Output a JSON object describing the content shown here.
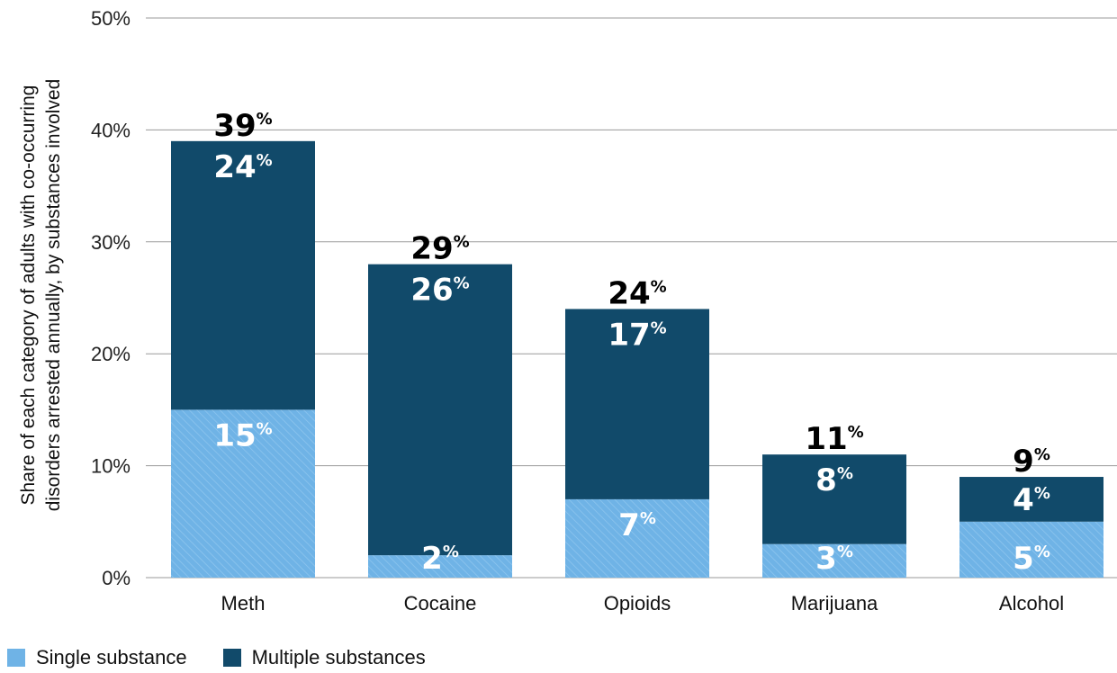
{
  "chart_data": {
    "type": "bar",
    "stacked": true,
    "categories": [
      "Meth",
      "Cocaine",
      "Opioids",
      "Marijuana",
      "Alcohol"
    ],
    "series": [
      {
        "name": "Single substance",
        "values": [
          15,
          2,
          7,
          3,
          5
        ],
        "labels": [
          "15",
          "2",
          "7",
          "3",
          "5"
        ],
        "color": "#6fb3e6"
      },
      {
        "name": "Multiple substances",
        "values": [
          24,
          26,
          17,
          8,
          4
        ],
        "labels": [
          "24",
          "26",
          "17",
          "8",
          "4"
        ],
        "color": "#114a6a"
      }
    ],
    "totals": [
      "39",
      "29",
      "24",
      "11",
      "9"
    ],
    "percent_sign": "%",
    "ylabel_line1": "Share of each category of  adults with co-occurring",
    "ylabel_line2": "disorders arrested annually, by substances involved",
    "ylim": [
      0,
      50
    ],
    "yticks": [
      "0%",
      "10%",
      "20%",
      "30%",
      "40%",
      "50%"
    ],
    "grid": true,
    "legend_position": "bottom-left"
  },
  "legend": {
    "single_label": "Single substance",
    "multiple_label": "Multiple substances",
    "single_color": "#6fb3e6",
    "multiple_color": "#114a6a"
  }
}
